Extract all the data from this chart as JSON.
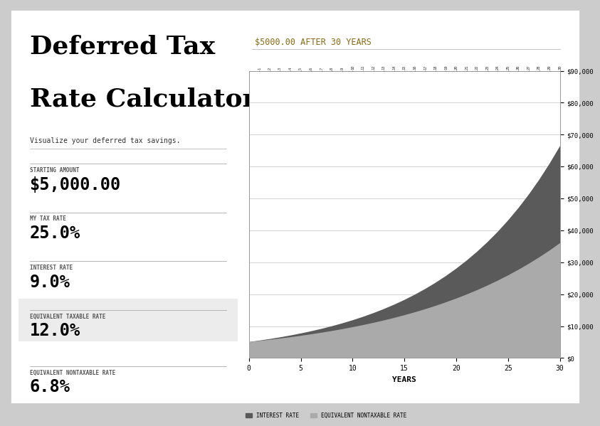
{
  "title_line1": "Deferred Tax",
  "title_line2": "Rate Calculator",
  "subtitle": "Visualize your deferred tax savings.",
  "fields": [
    {
      "label": "STARTING AMOUNT",
      "value": "$5,000.00",
      "highlighted": false
    },
    {
      "label": "MY TAX RATE",
      "value": "25.0%",
      "highlighted": false
    },
    {
      "label": "INTEREST RATE",
      "value": "9.0%",
      "highlighted": false
    },
    {
      "label": "EQUIVALENT TAXABLE RATE",
      "value": "12.0%",
      "highlighted": true
    },
    {
      "label": "EQUIVALENT NONTAXABLE RATE",
      "value": "6.8%",
      "highlighted": false
    }
  ],
  "chart_title": "$5000.00 AFTER 30 YEARS",
  "chart_xlabel": "YEARS",
  "chart_years": 30,
  "starting_amount": 5000,
  "interest_rate": 0.09,
  "nontaxable_rate": 0.068,
  "ylim": [
    0,
    90000
  ],
  "yticks": [
    0,
    10000,
    20000,
    30000,
    40000,
    50000,
    60000,
    70000,
    80000,
    90000
  ],
  "ytick_labels": [
    "$0",
    "$10,000",
    "$20,000",
    "$30,000",
    "$40,000",
    "$50,000",
    "$60,000",
    "$70,000",
    "$80,000",
    "$90,000"
  ],
  "xticks": [
    0,
    5,
    10,
    15,
    20,
    25,
    30
  ],
  "color_interest": "#5a5a5a",
  "color_nontaxable": "#aaaaaa",
  "bg_color": "#ffffff",
  "chart_bg": "#ffffff",
  "legend_interest": "INTEREST RATE",
  "legend_nontaxable": "EQUIVALENT NONTAXABLE RATE",
  "highlight_bg": "#ececec",
  "border_color": "#cccccc",
  "chart_title_color": "#8B6914"
}
